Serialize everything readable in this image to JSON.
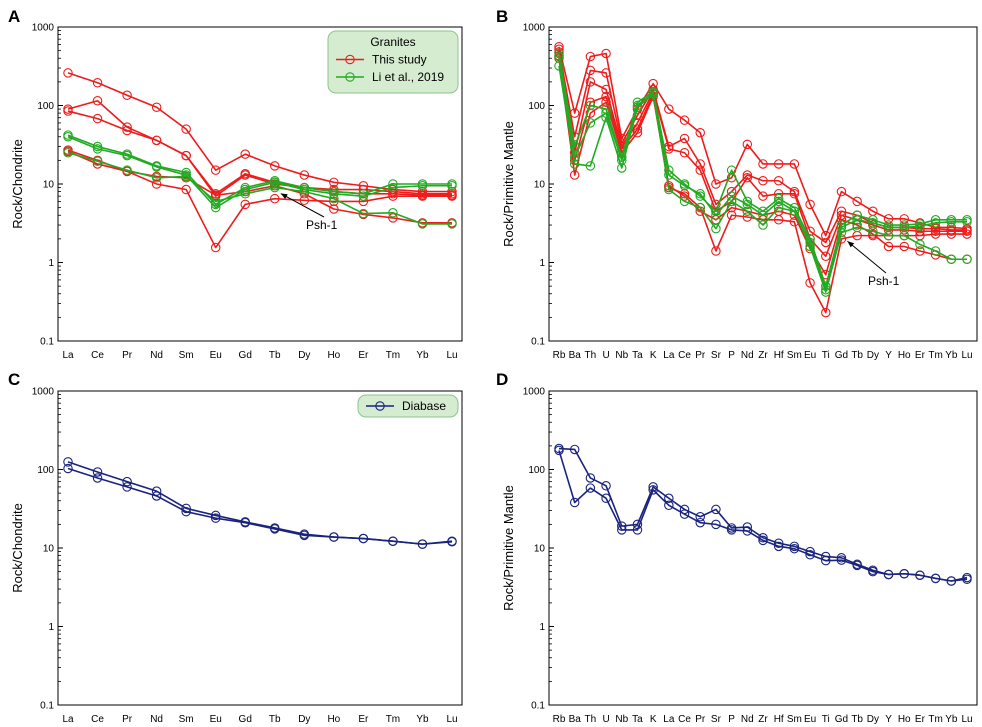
{
  "colors": {
    "granite_this_study": "#ee1c1c",
    "granite_li_2019": "#22aa22",
    "diabase": "#1a237e",
    "legend_bg": "#d6ecd0",
    "legend_edge": "#8bc48a"
  },
  "annotation": "Psh-1",
  "chart_data": [
    {
      "type": "line",
      "panel": "A",
      "ylabel": "Rock/Chondrite",
      "yscale": "log",
      "ylim": [
        0.1,
        1000
      ],
      "yticks": [
        "0.1",
        "1",
        "10",
        "100",
        "1000"
      ],
      "categories": [
        "La",
        "Ce",
        "Pr",
        "Nd",
        "Sm",
        "Eu",
        "Gd",
        "Tb",
        "Dy",
        "Ho",
        "Er",
        "Tm",
        "Yb",
        "Lu"
      ],
      "legend": {
        "title": "Granites",
        "entries": [
          "This study",
          "Li et al., 2019"
        ],
        "position": "top-right"
      },
      "annotation": {
        "text": "Psh-1",
        "points_to": "Tb"
      },
      "series": [
        {
          "name": "This study",
          "color": "#ee1c1c",
          "values": [
            260,
            195,
            135,
            95,
            50,
            15,
            24,
            17,
            13,
            10.5,
            9.5,
            8.5,
            8,
            8
          ]
        },
        {
          "name": "This study",
          "color": "#ee1c1c",
          "values": [
            90,
            115,
            53,
            36,
            23,
            7.5,
            13.5,
            10.5,
            9,
            8.5,
            8.5,
            8,
            7.5,
            7.5
          ]
        },
        {
          "name": "This study",
          "color": "#ee1c1c",
          "values": [
            85,
            68,
            48,
            36,
            23,
            7,
            13,
            10,
            9,
            8,
            7.5,
            7.5,
            7.2,
            7.2
          ]
        },
        {
          "name": "This study",
          "color": "#ee1c1c",
          "values": [
            27,
            20,
            14.5,
            10,
            8.5,
            1.55,
            5.5,
            6.5,
            6.2,
            6,
            6,
            7,
            7,
            7
          ]
        },
        {
          "name": "This study",
          "color": "#ee1c1c",
          "values": [
            26,
            18,
            14.5,
            12.5,
            12,
            7.2,
            8,
            9.5,
            7.5,
            4.8,
            4.1,
            3.7,
            3.2,
            3.2
          ]
        },
        {
          "name": "Li et al., 2019",
          "color": "#22aa22",
          "values": [
            42,
            30,
            24,
            17,
            14,
            5.5,
            9,
            11,
            9,
            8,
            7.5,
            10,
            10,
            10
          ]
        },
        {
          "name": "Li et al., 2019",
          "color": "#22aa22",
          "values": [
            40,
            28,
            23,
            16.5,
            13,
            5,
            8.5,
            10.5,
            8.5,
            7.5,
            7,
            9,
            9.5,
            9.5
          ]
        },
        {
          "name": "Li et al., 2019",
          "color": "#22aa22",
          "values": [
            25,
            19.5,
            15,
            12,
            12.5,
            6,
            7.5,
            9,
            8,
            6.5,
            4.2,
            4.3,
            3.1,
            3.1
          ]
        }
      ]
    },
    {
      "type": "line",
      "panel": "B",
      "ylabel": "Rock/Primitive Mantle",
      "yscale": "log",
      "ylim": [
        0.1,
        1000
      ],
      "yticks": [
        "0.1",
        "1",
        "10",
        "100",
        "1000"
      ],
      "categories": [
        "Rb",
        "Ba",
        "Th",
        "U",
        "Nb",
        "Ta",
        "K",
        "La",
        "Ce",
        "Pr",
        "Sr",
        "P",
        "Nd",
        "Zr",
        "Hf",
        "Sm",
        "Eu",
        "Ti",
        "Gd",
        "Tb",
        "Dy",
        "Y",
        "Ho",
        "Er",
        "Tm",
        "Yb",
        "Lu"
      ],
      "annotation": {
        "text": "Psh-1",
        "points_to": "Gd"
      },
      "series": [
        {
          "name": "This study",
          "color": "#ee1c1c",
          "values": [
            560,
            80,
            420,
            460,
            38,
            90,
            190,
            90,
            65,
            45,
            10,
            12,
            32,
            18,
            18,
            18,
            5.5,
            2.2,
            8,
            6,
            4.5,
            3.6,
            3.6,
            3.2,
            2.8,
            2.8,
            2.7
          ]
        },
        {
          "name": "This study",
          "color": "#ee1c1c",
          "values": [
            520,
            40,
            280,
            260,
            33,
            75,
            160,
            30,
            38,
            18,
            5.5,
            8,
            13,
            11,
            11,
            8,
            2.5,
            1.8,
            4.5,
            4,
            3.2,
            2.8,
            2.8,
            2.7,
            2.7,
            2.6,
            2.6
          ]
        },
        {
          "name": "This study",
          "color": "#ee1c1c",
          "values": [
            480,
            25,
            200,
            160,
            30,
            60,
            150,
            28,
            25,
            15,
            4.5,
            6,
            12,
            7,
            7.5,
            7.5,
            2,
            1.2,
            4,
            3.5,
            3,
            2.6,
            2.6,
            2.5,
            2.5,
            2.5,
            2.5
          ]
        },
        {
          "name": "This study",
          "color": "#ee1c1c",
          "values": [
            430,
            20,
            110,
            130,
            28,
            50,
            140,
            9,
            7.5,
            5,
            1.4,
            4,
            3.8,
            3.5,
            3.5,
            3.3,
            0.55,
            0.23,
            2,
            2.2,
            2.2,
            2.2,
            2.2,
            2.2,
            2.3,
            2.3,
            2.3
          ]
        },
        {
          "name": "This study",
          "color": "#ee1c1c",
          "values": [
            400,
            13,
            80,
            110,
            25,
            45,
            130,
            9.5,
            7,
            4.5,
            3.5,
            5,
            4.5,
            4,
            4.5,
            4,
            1.5,
            0.7,
            3.5,
            3,
            2.3,
            1.6,
            1.6,
            1.4,
            1.25,
            1.1,
            1.1
          ]
        },
        {
          "name": "Li et al., 2019",
          "color": "#22aa22",
          "values": [
            460,
            30,
            100,
            90,
            22,
            110,
            150,
            15,
            10,
            7,
            4.5,
            15,
            6,
            4.5,
            6.5,
            5,
            2,
            0.5,
            3,
            4,
            3.5,
            3,
            3,
            3.1,
            3.5,
            3.5,
            3.5
          ]
        },
        {
          "name": "Li et al., 2019",
          "color": "#22aa22",
          "values": [
            420,
            22,
            60,
            80,
            20,
            100,
            145,
            13,
            9.5,
            7.5,
            4,
            7,
            5.5,
            4,
            6,
            4.5,
            1.8,
            0.45,
            2.8,
            3.5,
            3.2,
            2.8,
            2.8,
            2.9,
            3.2,
            3.3,
            3.3
          ]
        },
        {
          "name": "Li et al., 2019",
          "color": "#22aa22",
          "values": [
            320,
            18,
            17,
            70,
            16,
            95,
            140,
            8.5,
            6,
            5,
            2.7,
            6,
            4.5,
            3,
            5,
            4.5,
            1.6,
            0.42,
            2.4,
            2.8,
            2.5,
            2.2,
            2.2,
            1.7,
            1.4,
            1.1,
            1.1
          ]
        }
      ]
    },
    {
      "type": "line",
      "panel": "C",
      "ylabel": "Rock/Chondrite",
      "yscale": "log",
      "ylim": [
        0.1,
        1000
      ],
      "yticks": [
        "0.1",
        "1",
        "10",
        "100",
        "1000"
      ],
      "categories": [
        "La",
        "Ce",
        "Pr",
        "Nd",
        "Sm",
        "Eu",
        "Gd",
        "Tb",
        "Dy",
        "Ho",
        "Er",
        "Tm",
        "Yb",
        "Lu"
      ],
      "legend": {
        "title": "",
        "entries": [
          "Diabase"
        ],
        "position": "top-right"
      },
      "series": [
        {
          "name": "Diabase",
          "color": "#1a237e",
          "values": [
            125,
            93,
            70,
            53,
            32,
            26,
            21.5,
            18,
            15,
            13.8,
            13.2,
            12.2,
            11.2,
            12.2
          ]
        },
        {
          "name": "Diabase",
          "color": "#1a237e",
          "values": [
            103,
            78,
            60,
            46,
            29,
            24,
            21,
            17.5,
            14.5,
            13.8,
            13.2,
            12.2,
            11.2,
            12
          ]
        }
      ]
    },
    {
      "type": "line",
      "panel": "D",
      "ylabel": "Rock/Primitive Mantle",
      "yscale": "log",
      "ylim": [
        0.1,
        1000
      ],
      "yticks": [
        "0.1",
        "1",
        "10",
        "100",
        "1000"
      ],
      "categories": [
        "Rb",
        "Ba",
        "Th",
        "U",
        "Nb",
        "Ta",
        "K",
        "La",
        "Ce",
        "Pr",
        "Sr",
        "P",
        "Nd",
        "Zr",
        "Hf",
        "Sm",
        "Eu",
        "Ti",
        "Gd",
        "Tb",
        "Dy",
        "Y",
        "Ho",
        "Er",
        "Tm",
        "Yb",
        "Lu"
      ],
      "series": [
        {
          "name": "Diabase",
          "color": "#1a237e",
          "values": [
            185,
            180,
            78,
            62,
            19,
            20,
            60,
            43,
            31,
            25,
            31,
            18,
            18.5,
            13.5,
            11.5,
            10.5,
            9,
            7.8,
            7.5,
            6.2,
            5.2,
            4.6,
            4.7,
            4.5,
            4.1,
            3.8,
            4.2
          ]
        },
        {
          "name": "Diabase",
          "color": "#1a237e",
          "values": [
            175,
            38,
            58,
            43,
            17,
            17,
            55,
            35,
            27,
            21,
            20,
            17,
            16.5,
            12.5,
            10.5,
            9.8,
            8.2,
            6.9,
            7,
            6,
            5,
            4.6,
            4.7,
            4.5,
            4.1,
            3.8,
            4
          ]
        }
      ]
    }
  ]
}
